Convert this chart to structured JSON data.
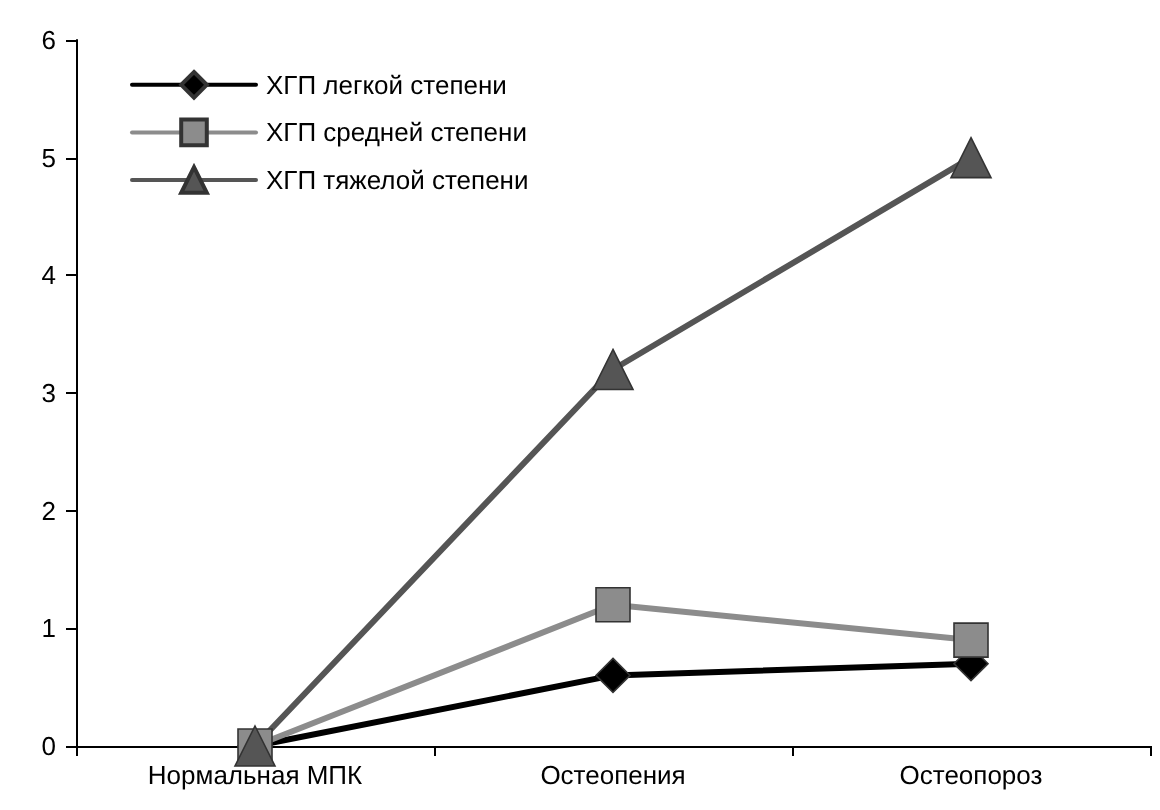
{
  "chart_data": {
    "type": "line",
    "categories": [
      "Нормальная МПК",
      "Остеопения",
      "Остеопороз"
    ],
    "series": [
      {
        "name": "ХГП легкой степени",
        "color": "#000000",
        "marker": "diamond",
        "values": [
          0,
          0.6,
          0.7
        ]
      },
      {
        "name": "ХГП средней степени",
        "color": "#8c8c8c",
        "marker": "square",
        "values": [
          0,
          1.2,
          0.9
        ]
      },
      {
        "name": "ХГП тяжелой степени",
        "color": "#555555",
        "marker": "triangle",
        "values": [
          0,
          3.2,
          5.0
        ]
      }
    ],
    "ylim": [
      0,
      6
    ],
    "yticks": [
      0,
      1,
      2,
      3,
      4,
      5,
      6
    ],
    "grid": false,
    "legend": "top left",
    "line_style": "solid"
  }
}
